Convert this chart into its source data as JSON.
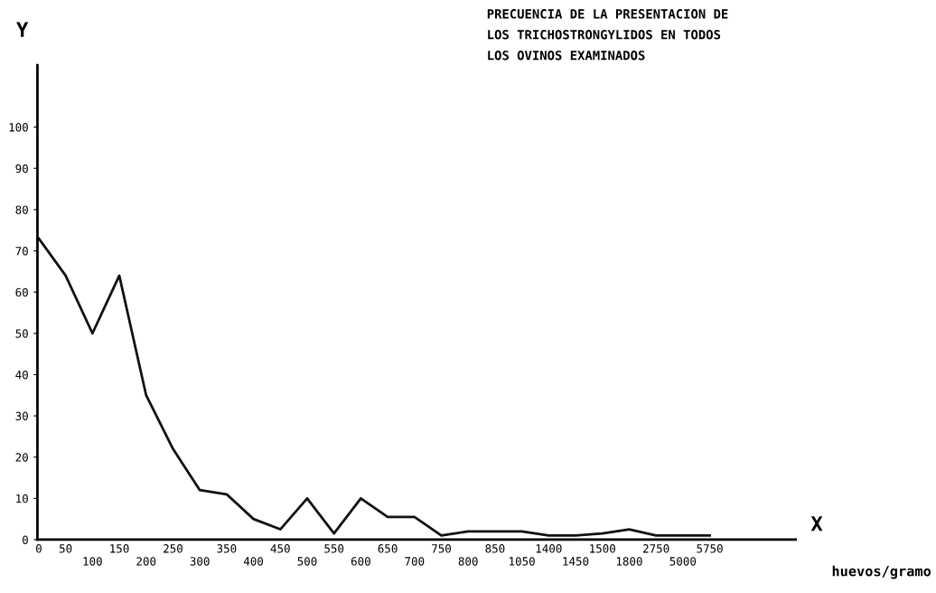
{
  "chart_data": {
    "type": "line",
    "title": "PRECUENCIA DE LA PRESENTACION DE\nLOS TRICHOSTRONGYLIDOS EN TODOS\nLOS OVINOS EXAMINADOS",
    "xlabel": "X",
    "ylabel": "Y",
    "annotations": [
      "huevos/gramo"
    ],
    "categories": [
      "0",
      "50",
      "100",
      "150",
      "200",
      "250",
      "300",
      "350",
      "400",
      "450",
      "500",
      "550",
      "600",
      "650",
      "700",
      "750",
      "800",
      "850",
      "1050",
      "1400",
      "1450",
      "1500",
      "1800",
      "2750",
      "5000",
      "5750"
    ],
    "series": [
      {
        "color": "#111111",
        "values": [
          73,
          64,
          50,
          64,
          35,
          22,
          12,
          11,
          5,
          2.5,
          10,
          1.5,
          10,
          5.5,
          5.5,
          1,
          2,
          2,
          2,
          1,
          1,
          1.5,
          2.5,
          1,
          1,
          1
        ]
      }
    ],
    "ylim": [
      0,
      115
    ],
    "yticks": [
      0,
      10,
      20,
      30,
      40,
      50,
      60,
      70,
      80,
      90,
      100
    ],
    "grid": false,
    "marker": "none",
    "line_style": "solid"
  }
}
